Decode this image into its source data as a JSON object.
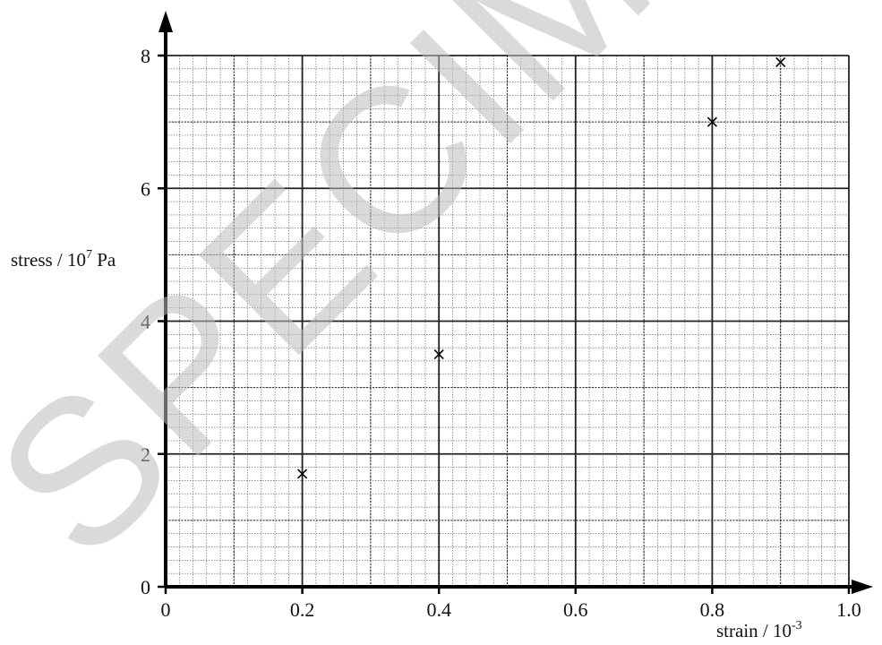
{
  "chart_data": {
    "type": "scatter",
    "x": [
      0.2,
      0.4,
      0.8,
      0.9
    ],
    "y": [
      1.7,
      3.5,
      7.0,
      7.9
    ],
    "xlim": [
      0,
      1.0
    ],
    "ylim": [
      0,
      8
    ],
    "x_ticks": [
      "0",
      "0.2",
      "0.4",
      "0.6",
      "0.8",
      "1.0"
    ],
    "y_ticks": [
      "0",
      "2",
      "4",
      "6",
      "8"
    ],
    "xlabel": {
      "text": "strain / 10",
      "sup": "-3"
    },
    "ylabel": {
      "text": "stress / 10",
      "sup": "7",
      "after": " Pa"
    },
    "grid": true,
    "marker": "x"
  },
  "watermark": "SPECIMEN"
}
